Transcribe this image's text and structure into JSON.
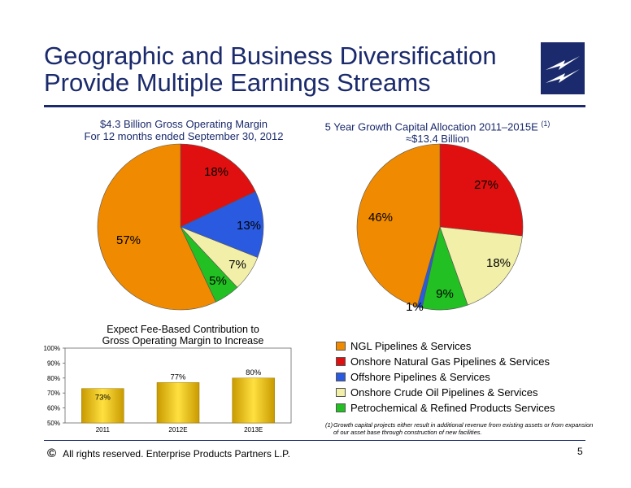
{
  "title": {
    "line1": "Geographic and Business Diversification",
    "line2": "Provide Multiple Earnings Streams"
  },
  "colors": {
    "brand": "#1a2a6c",
    "ngl": "#f08a00",
    "natgas": "#e01010",
    "offshore": "#2a5ae0",
    "crude": "#f2f0a8",
    "petro": "#22c022",
    "bar": "#e8c000"
  },
  "chart_data": [
    {
      "type": "pie",
      "title_line1": "$4.3 Billion Gross Operating Margin",
      "title_line2": "For 12 months ended September 30, 2012",
      "labels": [
        "NGL Pipelines & Services",
        "Onshore Natural Gas Pipelines & Services",
        "Offshore Pipelines & Services",
        "Onshore Crude Oil Pipelines & Services",
        "Petrochemical & Refined Products Services"
      ],
      "values": [
        57,
        18,
        13,
        7,
        5
      ],
      "data_labels": [
        "57%",
        "18%",
        "13%",
        "7%",
        "5%"
      ]
    },
    {
      "type": "pie",
      "title_line1": "5 Year Growth Capital Allocation 2011–2015E",
      "title_superscript": "(1)",
      "title_line2": "≈$13.4 Billion",
      "labels": [
        "NGL Pipelines & Services",
        "Onshore Natural Gas Pipelines & Services",
        "Offshore Pipelines & Services",
        "Onshore Crude Oil Pipelines & Services",
        "Petrochemical & Refined Products Services"
      ],
      "values": [
        46,
        27,
        1,
        18,
        9
      ],
      "data_labels": [
        "46%",
        "27%",
        "1%",
        "18%",
        "9%"
      ]
    },
    {
      "type": "bar",
      "title_line1": "Expect Fee-Based Contribution to",
      "title_line2": "Gross Operating Margin to Increase",
      "categories": [
        "2011",
        "2012E",
        "2013E"
      ],
      "values": [
        73,
        77,
        80
      ],
      "data_labels": [
        "73%",
        "77%",
        "80%"
      ],
      "ylim": [
        50,
        100
      ],
      "yticks": [
        "50%",
        "60%",
        "70%",
        "80%",
        "90%",
        "100%"
      ],
      "grid": false
    }
  ],
  "legend": [
    {
      "label": "NGL Pipelines & Services",
      "color": "#f08a00"
    },
    {
      "label": "Onshore Natural Gas Pipelines & Services",
      "color": "#e01010"
    },
    {
      "label": "Offshore Pipelines & Services",
      "color": "#2a5ae0"
    },
    {
      "label": "Onshore Crude Oil Pipelines & Services",
      "color": "#f2f0a8"
    },
    {
      "label": "Petrochemical & Refined Products Services",
      "color": "#22c022"
    }
  ],
  "footnote": {
    "number": "(1)",
    "text": "Growth capital projects either result in additional revenue from existing assets or from expansion of our asset base through construction of new facilities."
  },
  "footer": {
    "copyright_symbol": "©",
    "text": "All rights reserved. Enterprise Products Partners L.P.",
    "page_number": "5"
  }
}
